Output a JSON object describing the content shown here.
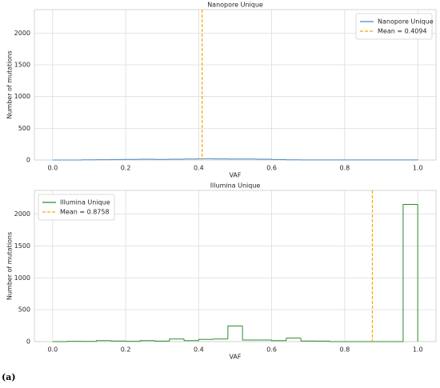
{
  "chart_data": [
    {
      "type": "histogram",
      "title": "Nanopore Unique",
      "xlabel": "VAF",
      "ylabel": "Number of mutations",
      "bins": [
        0,
        0.04,
        0.08,
        0.12,
        0.16,
        0.2,
        0.24,
        0.28,
        0.32,
        0.36,
        0.4,
        0.44,
        0.48,
        0.52,
        0.56,
        0.6,
        0.64,
        0.68,
        0.72,
        0.76,
        0.8,
        0.84,
        0.88,
        0.92,
        0.96,
        1
      ],
      "series": [
        {
          "name": "Nanopore Unique",
          "color": "#4c8bc4",
          "values": [
            0,
            0,
            3,
            5,
            8,
            10,
            12,
            10,
            12,
            15,
            20,
            18,
            15,
            15,
            12,
            8,
            3,
            2,
            1,
            1,
            1,
            1,
            1,
            2,
            2
          ]
        }
      ],
      "mean_line": {
        "name": "Mean = 0.4094",
        "value": 0.4094,
        "color": "#ffa500"
      },
      "xlim": [
        -0.05,
        1.05
      ],
      "ylim": [
        0,
        2370
      ],
      "xticks": [
        {
          "value": 0,
          "label": "0.0"
        },
        {
          "value": 0.2,
          "label": "0.2"
        },
        {
          "value": 0.4,
          "label": "0.4"
        },
        {
          "value": 0.6,
          "label": "0.6"
        },
        {
          "value": 0.8,
          "label": "0.8"
        },
        {
          "value": 1,
          "label": "1.0"
        }
      ],
      "yticks": [
        0,
        500,
        1000,
        1500,
        2000
      ],
      "grid": true,
      "legend": "upper right"
    },
    {
      "type": "histogram",
      "title": "Illumina Unique",
      "xlabel": "VAF",
      "ylabel": "Number of mutations",
      "bins": [
        0,
        0.04,
        0.08,
        0.12,
        0.16,
        0.2,
        0.24,
        0.28,
        0.32,
        0.36,
        0.4,
        0.44,
        0.48,
        0.52,
        0.56,
        0.6,
        0.64,
        0.68,
        0.72,
        0.76,
        0.8,
        0.84,
        0.88,
        0.92,
        0.96,
        1
      ],
      "series": [
        {
          "name": "Illumina Unique",
          "color": "#2e8b2e",
          "values": [
            0,
            5,
            3,
            15,
            10,
            5,
            15,
            8,
            40,
            15,
            35,
            40,
            245,
            25,
            25,
            15,
            55,
            10,
            8,
            0,
            0,
            0,
            0,
            0,
            2150
          ]
        }
      ],
      "mean_line": {
        "name": "Mean = 0.8758",
        "value": 0.8758,
        "color": "#ffa500"
      },
      "xlim": [
        -0.05,
        1.05
      ],
      "ylim": [
        0,
        2370
      ],
      "xticks": [
        {
          "value": 0,
          "label": "0.0"
        },
        {
          "value": 0.2,
          "label": "0.2"
        },
        {
          "value": 0.4,
          "label": "0.4"
        },
        {
          "value": 0.6,
          "label": "0.6"
        },
        {
          "value": 0.8,
          "label": "0.8"
        },
        {
          "value": 1,
          "label": "1.0"
        }
      ],
      "yticks": [
        0,
        500,
        1000,
        1500,
        2000
      ],
      "grid": true,
      "legend": "upper left"
    }
  ],
  "caption": "(a)"
}
